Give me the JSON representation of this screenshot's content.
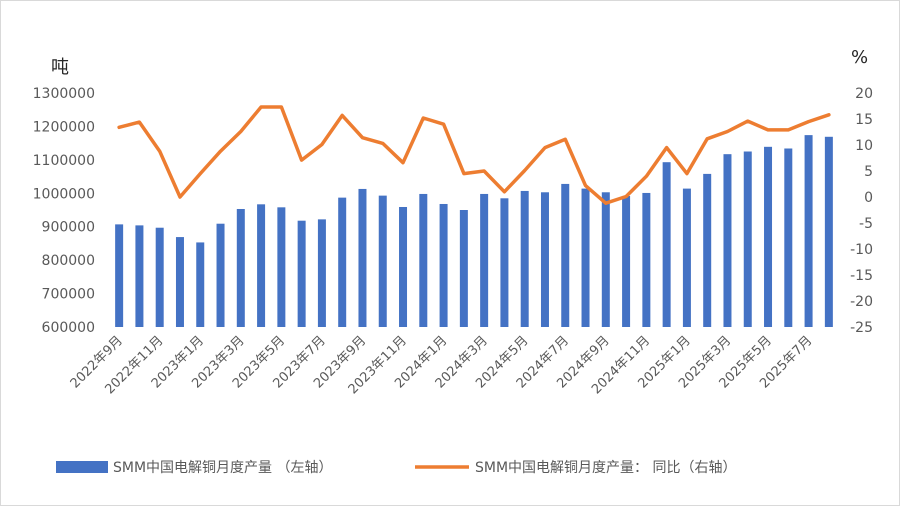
{
  "chart_data": {
    "type": "bar+line",
    "categories": [
      "2022年9月",
      "2022年10月",
      "2022年11月",
      "2022年12月",
      "2023年1月",
      "2023年2月",
      "2023年3月",
      "2023年4月",
      "2023年5月",
      "2023年6月",
      "2023年7月",
      "2023年8月",
      "2023年9月",
      "2023年10月",
      "2023年11月",
      "2023年12月",
      "2024年1月",
      "2024年2月",
      "2024年3月",
      "2024年4月",
      "2024年5月",
      "2024年6月",
      "2024年7月",
      "2024年8月",
      "2024年9月",
      "2024年10月",
      "2024年11月",
      "2024年12月",
      "2025年1月",
      "2025年2月",
      "2025年3月",
      "2025年4月",
      "2025年5月",
      "2025年6月",
      "2025年7月",
      "2025年8月"
    ],
    "x_tick_labels": [
      "2022年9月",
      "2022年11月",
      "2023年1月",
      "2023年3月",
      "2023年5月",
      "2023年7月",
      "2023年9月",
      "2023年11月",
      "2024年1月",
      "2024年3月",
      "2024年5月",
      "2024年7月",
      "2024年9月",
      "2024年11月",
      "2025年1月",
      "2025年3月",
      "2025年5月",
      "2025年7月"
    ],
    "series": [
      {
        "name": "SMM中国电解铜月度产量 （左轴）",
        "type": "bar",
        "axis": "left",
        "color": "#4472c4",
        "values": [
          907000,
          904000,
          897000,
          869000,
          853000,
          909000,
          953000,
          967000,
          958000,
          918000,
          922000,
          987000,
          1013000,
          993000,
          959000,
          998000,
          968000,
          950000,
          998000,
          985000,
          1007000,
          1003000,
          1028000,
          1014000,
          1003000,
          992000,
          1001000,
          1093000,
          1014000,
          1058000,
          1117000,
          1125000,
          1139000,
          1134000,
          1174000,
          1169000
        ]
      },
      {
        "name": "SMM中国电解铜月度产量： 同比（右轴）",
        "type": "line",
        "axis": "right",
        "color": "#ed7d31",
        "values": [
          13.4,
          14.4,
          8.8,
          0.0,
          4.5,
          8.8,
          12.6,
          17.3,
          17.3,
          7.1,
          10.1,
          15.7,
          11.4,
          10.3,
          6.6,
          15.2,
          14.0,
          4.5,
          5.0,
          1.0,
          5.1,
          9.5,
          11.1,
          2.2,
          -1.2,
          0.1,
          4.0,
          9.5,
          4.5,
          11.2,
          12.6,
          14.6,
          12.9,
          12.9,
          14.5,
          15.8
        ]
      }
    ],
    "y_left": {
      "unit": "吨",
      "min": 600000,
      "max": 1300000,
      "step": 100000,
      "ticks": [
        "600000",
        "700000",
        "800000",
        "900000",
        "1000000",
        "1100000",
        "1200000",
        "1300000"
      ]
    },
    "y_right": {
      "unit": "%",
      "min": -25,
      "max": 20,
      "step": 5,
      "ticks": [
        "-25",
        "-20",
        "-15",
        "-10",
        "-5",
        "0",
        "5",
        "10",
        "15",
        "20"
      ]
    },
    "grid": false,
    "legend": "bottom"
  }
}
